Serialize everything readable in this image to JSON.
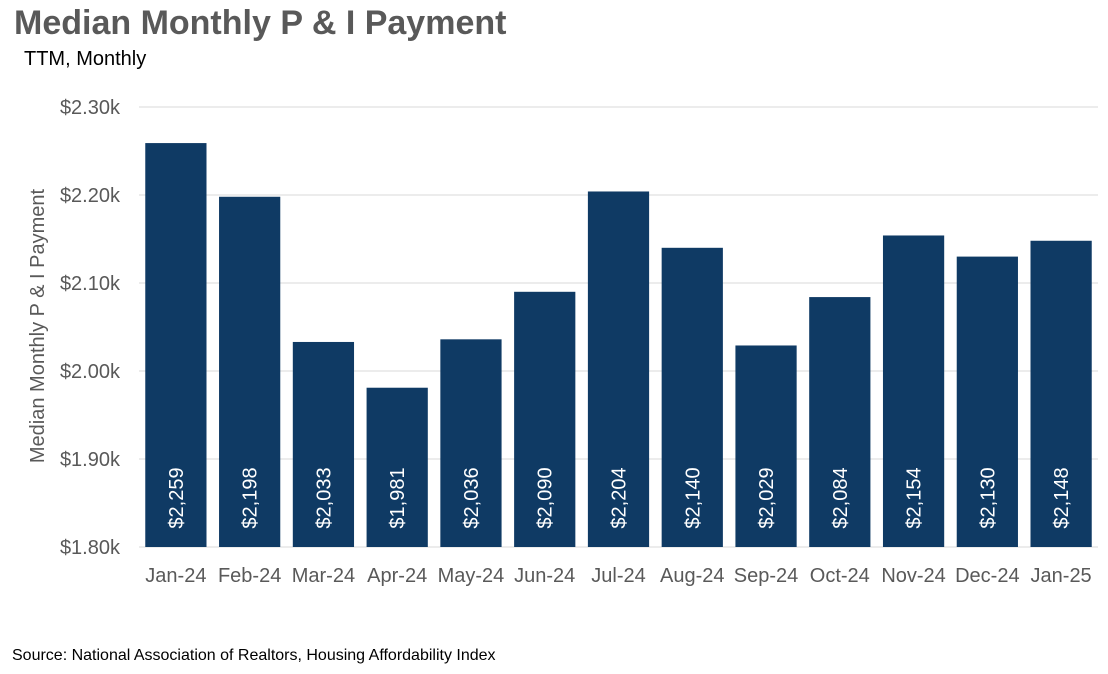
{
  "chart_data": {
    "type": "bar",
    "title": "Median Monthly P & I Payment",
    "subtitle": "TTM, Monthly",
    "ylabel": "Median Monthly P & I Payment",
    "xlabel": "",
    "categories": [
      "Jan-24",
      "Feb-24",
      "Mar-24",
      "Apr-24",
      "May-24",
      "Jun-24",
      "Jul-24",
      "Aug-24",
      "Sep-24",
      "Oct-24",
      "Nov-24",
      "Dec-24",
      "Jan-25"
    ],
    "values": [
      2259,
      2198,
      2033,
      1981,
      2036,
      2090,
      2204,
      2140,
      2029,
      2084,
      2154,
      2130,
      2148
    ],
    "value_labels": [
      "$2,259",
      "$2,198",
      "$2,033",
      "$1,981",
      "$2,036",
      "$2,090",
      "$2,204",
      "$2,140",
      "$2,029",
      "$2,084",
      "$2,154",
      "$2,130",
      "$2,148"
    ],
    "ylim": [
      1800,
      2300
    ],
    "yticks": [
      1800,
      1900,
      2000,
      2100,
      2200,
      2300
    ],
    "ytick_labels": [
      "$1.80k",
      "$1.90k",
      "$2.00k",
      "$2.10k",
      "$2.20k",
      "$2.30k"
    ],
    "grid": true,
    "legend": "none",
    "colors": {
      "bar": "#0f3a64",
      "grid": "#d9d9d9",
      "axis_text": "#595959",
      "data_label": "#ffffff"
    },
    "source": "Source: National Association of Realtors, Housing Affordability Index"
  }
}
